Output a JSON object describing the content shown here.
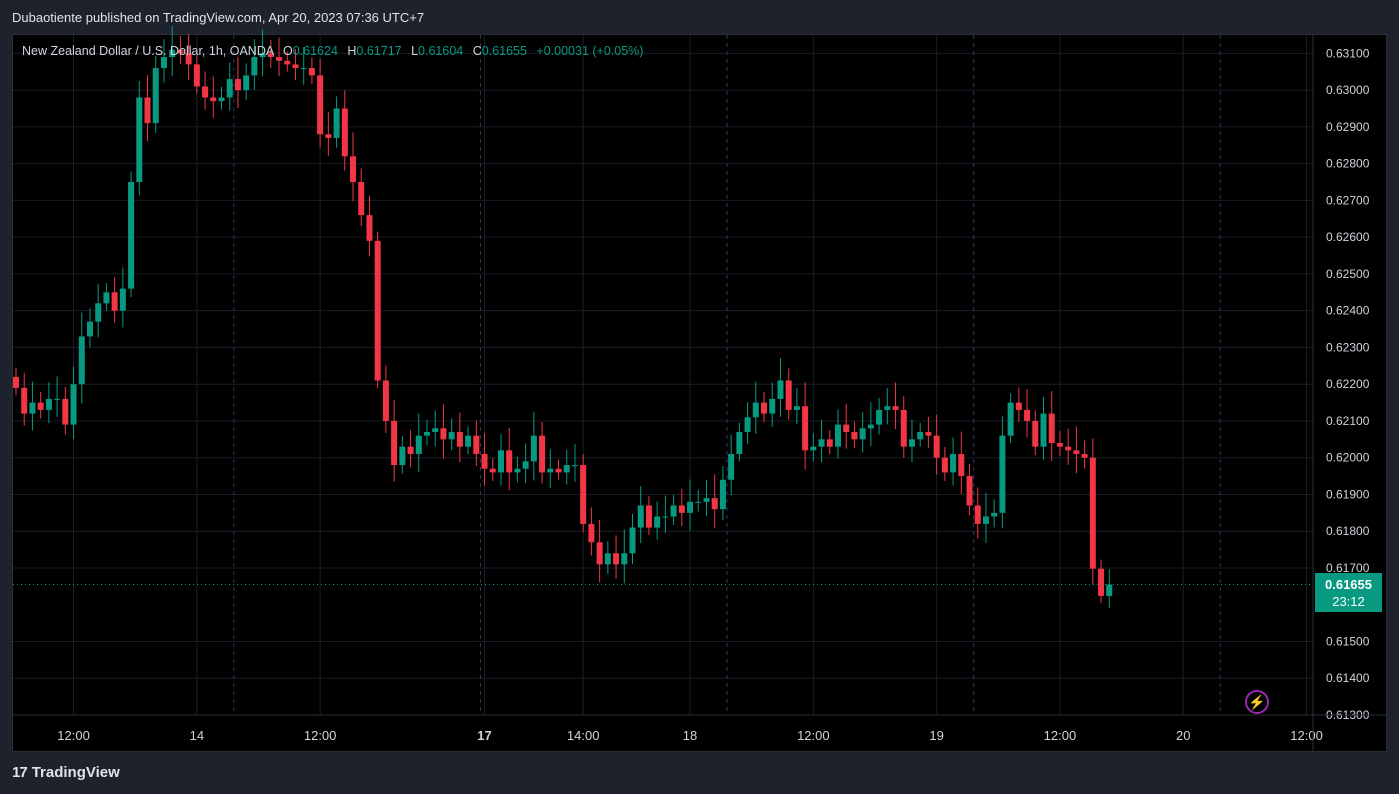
{
  "header": {
    "published": "Dubaotiente published on TradingView.com, Apr 20, 2023 07:36 UTC+7"
  },
  "legend": {
    "symbol": "New Zealand Dollar / U.S. Dollar, 1h, OANDA",
    "o_label": "O",
    "o_value": "0.61624",
    "h_label": "H",
    "h_value": "0.61717",
    "l_label": "L",
    "l_value": "0.61604",
    "c_label": "C",
    "c_value": "0.61655",
    "change": "+0.00031 (+0.05%)"
  },
  "last_price": {
    "value": "0.61655",
    "countdown": "23:12"
  },
  "footer": {
    "brand": "TradingView",
    "logo_text": "17"
  },
  "colors": {
    "up": "#089981",
    "down": "#f23645",
    "background": "#000000",
    "accent_bolt": "#9c27b0"
  },
  "chart_data": {
    "type": "candlestick",
    "timeframe": "1h",
    "ylim": [
      0.613,
      0.6315
    ],
    "y_ticks": [
      "0.63100",
      "0.63000",
      "0.62900",
      "0.62800",
      "0.62700",
      "0.62600",
      "0.62500",
      "0.62400",
      "0.62300",
      "0.62200",
      "0.62100",
      "0.62000",
      "0.61900",
      "0.61800",
      "0.61700",
      "0.61500",
      "0.61400",
      "0.61300"
    ],
    "x_ticks": [
      {
        "label": "12:00",
        "bar": 7,
        "bold": false
      },
      {
        "label": "14",
        "bar": 22,
        "bold": false
      },
      {
        "label": "12:00",
        "bar": 37,
        "bold": false
      },
      {
        "label": "17",
        "bar": 57,
        "bold": true
      },
      {
        "label": "14:00",
        "bar": 69,
        "bold": false
      },
      {
        "label": "18",
        "bar": 82,
        "bold": false
      },
      {
        "label": "12:00",
        "bar": 97,
        "bold": false
      },
      {
        "label": "19",
        "bar": 112,
        "bold": false
      },
      {
        "label": "12:00",
        "bar": 127,
        "bold": false
      },
      {
        "label": "20",
        "bar": 142,
        "bold": false
      },
      {
        "label": "12:00",
        "bar": 157,
        "bold": false
      }
    ],
    "day_separators": [
      27,
      57,
      87,
      117,
      147
    ],
    "last_price": 0.61655,
    "closes": [
      0.6219,
      0.6212,
      0.6215,
      0.6213,
      0.6216,
      0.6216,
      0.6209,
      0.622,
      0.6233,
      0.6237,
      0.6242,
      0.6245,
      0.624,
      0.6246,
      0.6275,
      0.6298,
      0.6291,
      0.6306,
      0.6309,
      0.6311,
      0.631,
      0.6307,
      0.6301,
      0.6298,
      0.6297,
      0.6298,
      0.6303,
      0.63,
      0.6304,
      0.6309,
      0.631,
      0.6309,
      0.6308,
      0.6307,
      0.6306,
      0.6306,
      0.6304,
      0.6288,
      0.6287,
      0.6295,
      0.6282,
      0.6275,
      0.6266,
      0.6259,
      0.6221,
      0.621,
      0.6198,
      0.6203,
      0.6201,
      0.6206,
      0.6207,
      0.6208,
      0.6205,
      0.6207,
      0.6203,
      0.6206,
      0.6201,
      0.6197,
      0.6196,
      0.6202,
      0.6196,
      0.6197,
      0.6199,
      0.6206,
      0.6196,
      0.6197,
      0.6196,
      0.6198,
      0.6198,
      0.6182,
      0.6177,
      0.6171,
      0.6174,
      0.6171,
      0.6174,
      0.6181,
      0.6187,
      0.6181,
      0.6184,
      0.6184,
      0.6187,
      0.6185,
      0.6188,
      0.6188,
      0.6189,
      0.6186,
      0.6194,
      0.6201,
      0.6207,
      0.6211,
      0.6215,
      0.6212,
      0.6216,
      0.6221,
      0.6213,
      0.6214,
      0.6202,
      0.6203,
      0.6205,
      0.6203,
      0.6209,
      0.6207,
      0.6205,
      0.6208,
      0.6209,
      0.6213,
      0.6214,
      0.6213,
      0.6203,
      0.6205,
      0.6207,
      0.6206,
      0.62,
      0.6196,
      0.6201,
      0.6195,
      0.6187,
      0.6182,
      0.6184,
      0.6185,
      0.6206,
      0.6215,
      0.6213,
      0.621,
      0.6203,
      0.6212,
      0.6204,
      0.6203,
      0.6202,
      0.6201,
      0.62,
      0.61698,
      0.61624,
      0.61655
    ]
  }
}
